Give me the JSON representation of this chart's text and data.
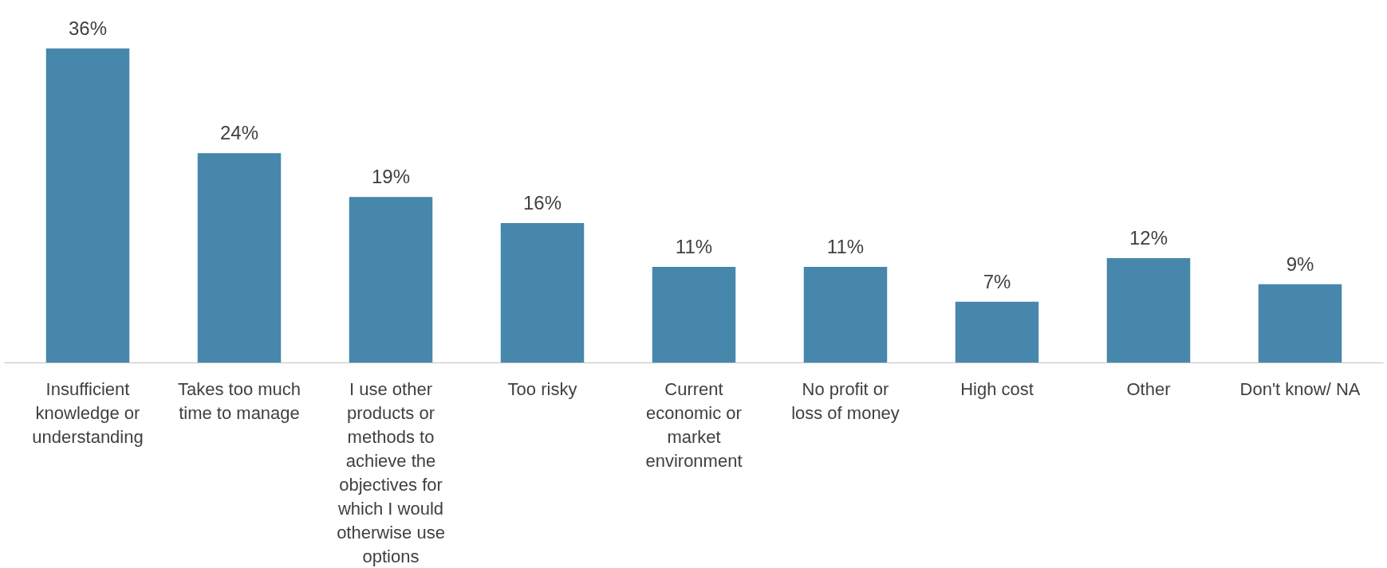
{
  "chart_data": {
    "type": "bar",
    "categories": [
      "Insufficient knowledge or understanding",
      "Takes too much time to manage",
      "I use other products or methods to achieve the objectives for which I would otherwise use options",
      "Too risky",
      "Current economic or market environment",
      "No profit or loss of money",
      "High cost",
      "Other",
      "Don't know/ NA"
    ],
    "values": [
      36,
      24,
      19,
      16,
      11,
      11,
      7,
      12,
      9
    ],
    "value_labels": [
      "36%",
      "24%",
      "19%",
      "16%",
      "11%",
      "11%",
      "7%",
      "12%",
      "9%"
    ],
    "color": "#4787ab",
    "grid": false
  }
}
